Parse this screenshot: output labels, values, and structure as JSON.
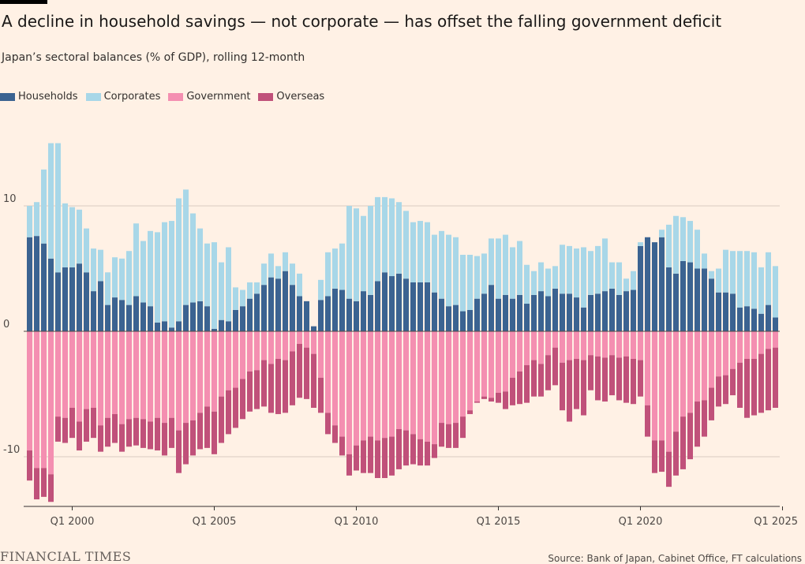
{
  "title": "A decline in household savings — not corporate — has offset the falling government deficit",
  "subtitle": "Japan’s sectoral balances (% of GDP), rolling 12-month",
  "source": "Source: Bank of Japan, Cabinet Office, FT calculations",
  "brand": "FINANCIAL TIMES",
  "colors": {
    "households": "#3b6391",
    "corporates": "#a8d7e8",
    "government": "#f48fb1",
    "overseas": "#c0517a",
    "grid": "#d9ccc1",
    "axis": "#33302e"
  },
  "chart_data": {
    "type": "bar",
    "stacked": true,
    "frequency": "quarterly",
    "first_period": "Q3 1998",
    "last_period": "Q1 2025",
    "x_ticks": [
      "Q1 2000",
      "Q1 2005",
      "Q1 2010",
      "Q1 2015",
      "Q1 2020",
      "Q1 2025"
    ],
    "y_ticks": [
      10,
      0,
      -10
    ],
    "ylim": [
      -14.5,
      16.5
    ],
    "grid": true,
    "legend_position": "top-left",
    "series": [
      {
        "name": "Households",
        "color_key": "households",
        "values": [
          7.5,
          7.6,
          7.0,
          5.8,
          4.7,
          5.1,
          5.1,
          5.4,
          4.7,
          3.2,
          4.0,
          2.1,
          2.7,
          2.5,
          2.1,
          2.8,
          2.3,
          2.0,
          0.7,
          0.8,
          0.3,
          0.8,
          2.1,
          2.3,
          2.4,
          2.0,
          0.2,
          0.9,
          0.8,
          1.7,
          2.0,
          2.6,
          3.0,
          3.7,
          4.3,
          4.2,
          4.8,
          3.7,
          2.8,
          2.4,
          0.4,
          2.5,
          2.8,
          3.4,
          3.3,
          2.6,
          2.4,
          3.2,
          2.9,
          4.0,
          4.7,
          4.4,
          4.6,
          4.2,
          3.9,
          3.9,
          3.9,
          3.1,
          2.6,
          2.0,
          2.1,
          1.6,
          1.7,
          2.6,
          3.0,
          3.7,
          2.6,
          2.9,
          2.6,
          2.9,
          2.2,
          2.9,
          3.2,
          2.8,
          3.4,
          3.0,
          3.0,
          2.7,
          1.9,
          2.9,
          3.0,
          3.2,
          3.4,
          2.9,
          3.2,
          3.3,
          6.8,
          7.5,
          7.1,
          7.5,
          5.1,
          4.6,
          5.6,
          5.5,
          5.0,
          5.0,
          4.2,
          3.1,
          3.1,
          3.0,
          1.9,
          2.0,
          1.8,
          1.4,
          2.1,
          1.1
        ]
      },
      {
        "name": "Corporates",
        "color_key": "corporates",
        "values": [
          2.5,
          2.7,
          5.9,
          9.2,
          10.3,
          5.1,
          4.8,
          4.3,
          3.5,
          3.4,
          2.5,
          2.6,
          3.2,
          3.3,
          4.3,
          5.8,
          4.9,
          6.0,
          7.2,
          7.9,
          8.5,
          9.8,
          9.2,
          7.1,
          5.8,
          5.0,
          6.9,
          4.6,
          5.9,
          1.8,
          1.3,
          1.3,
          0.9,
          1.7,
          1.9,
          1.0,
          1.5,
          1.7,
          1.8,
          0.0,
          0.0,
          1.6,
          3.5,
          3.2,
          3.7,
          7.4,
          7.4,
          6.0,
          7.1,
          6.7,
          6.0,
          6.2,
          5.7,
          5.4,
          4.8,
          4.9,
          4.8,
          4.6,
          5.4,
          5.7,
          5.4,
          4.5,
          4.4,
          3.4,
          3.2,
          3.7,
          4.8,
          4.8,
          4.1,
          4.3,
          3.1,
          1.9,
          2.3,
          2.2,
          1.8,
          3.9,
          3.8,
          3.9,
          4.8,
          3.5,
          3.8,
          4.2,
          2.1,
          2.6,
          1.0,
          1.5,
          0.3,
          0.0,
          0.0,
          0.6,
          3.4,
          4.6,
          3.5,
          3.3,
          3.1,
          1.2,
          0.6,
          1.9,
          3.4,
          3.4,
          4.5,
          4.4,
          4.5,
          3.7,
          4.2,
          4.1
        ]
      },
      {
        "name": "Government",
        "color_key": "government",
        "values": [
          -9.5,
          -10.9,
          -10.9,
          -11.4,
          -6.8,
          -6.9,
          -6.1,
          -7.2,
          -6.2,
          -6.1,
          -7.5,
          -6.9,
          -6.6,
          -7.4,
          -7.0,
          -6.9,
          -7.0,
          -7.2,
          -6.9,
          -7.3,
          -6.9,
          -7.9,
          -7.3,
          -7.1,
          -6.5,
          -6.0,
          -6.4,
          -5.2,
          -4.7,
          -4.5,
          -3.8,
          -3.2,
          -3.1,
          -2.3,
          -2.6,
          -2.2,
          -2.3,
          -1.6,
          -1.0,
          -1.3,
          -1.8,
          -3.7,
          -6.5,
          -7.5,
          -8.4,
          -9.8,
          -9.1,
          -8.7,
          -8.4,
          -8.7,
          -8.5,
          -8.4,
          -7.8,
          -7.9,
          -8.2,
          -8.6,
          -8.8,
          -9.0,
          -7.3,
          -7.4,
          -7.3,
          -6.8,
          -6.3,
          -5.6,
          -5.2,
          -5.3,
          -4.9,
          -4.8,
          -3.7,
          -3.2,
          -2.7,
          -2.3,
          -2.6,
          -1.9,
          -1.3,
          -2.5,
          -2.3,
          -2.2,
          -2.3,
          -1.9,
          -2.0,
          -2.1,
          -1.9,
          -2.1,
          -2.0,
          -2.2,
          -2.3,
          -5.9,
          -8.7,
          -8.7,
          -9.6,
          -8.0,
          -6.8,
          -6.5,
          -5.6,
          -5.5,
          -4.5,
          -3.6,
          -3.5,
          -3.0,
          -2.5,
          -2.2,
          -2.2,
          -1.8,
          -1.4,
          -1.3
        ]
      },
      {
        "name": "Overseas",
        "color_key": "overseas",
        "values": [
          -2.4,
          -2.5,
          -2.3,
          -2.2,
          -2.0,
          -2.0,
          -2.4,
          -2.3,
          -2.6,
          -2.4,
          -2.1,
          -2.3,
          -2.3,
          -2.2,
          -2.2,
          -2.2,
          -2.3,
          -2.2,
          -2.6,
          -2.6,
          -2.4,
          -3.4,
          -3.3,
          -2.8,
          -2.9,
          -3.3,
          -3.4,
          -3.7,
          -3.5,
          -3.2,
          -3.2,
          -3.2,
          -3.1,
          -3.7,
          -3.9,
          -4.4,
          -4.2,
          -4.3,
          -4.3,
          -4.1,
          -4.3,
          -2.8,
          -1.7,
          -1.4,
          -1.5,
          -1.7,
          -2.0,
          -2.6,
          -2.9,
          -3.0,
          -3.2,
          -3.1,
          -3.2,
          -2.8,
          -2.4,
          -2.1,
          -1.9,
          -1.1,
          -1.9,
          -1.9,
          -2.0,
          -1.7,
          -0.3,
          -0.1,
          -0.2,
          -0.3,
          -0.8,
          -1.4,
          -2.2,
          -2.6,
          -3.0,
          -2.9,
          -2.6,
          -2.8,
          -3.0,
          -3.8,
          -4.9,
          -4.0,
          -4.4,
          -2.8,
          -3.5,
          -3.5,
          -3.2,
          -3.4,
          -3.7,
          -3.6,
          -2.9,
          -2.5,
          -2.6,
          -2.5,
          -2.8,
          -3.5,
          -4.2,
          -3.7,
          -3.6,
          -2.9,
          -2.6,
          -2.4,
          -2.3,
          -2.1,
          -3.6,
          -4.7,
          -4.5,
          -4.7,
          -4.9,
          -4.8
        ]
      }
    ]
  }
}
